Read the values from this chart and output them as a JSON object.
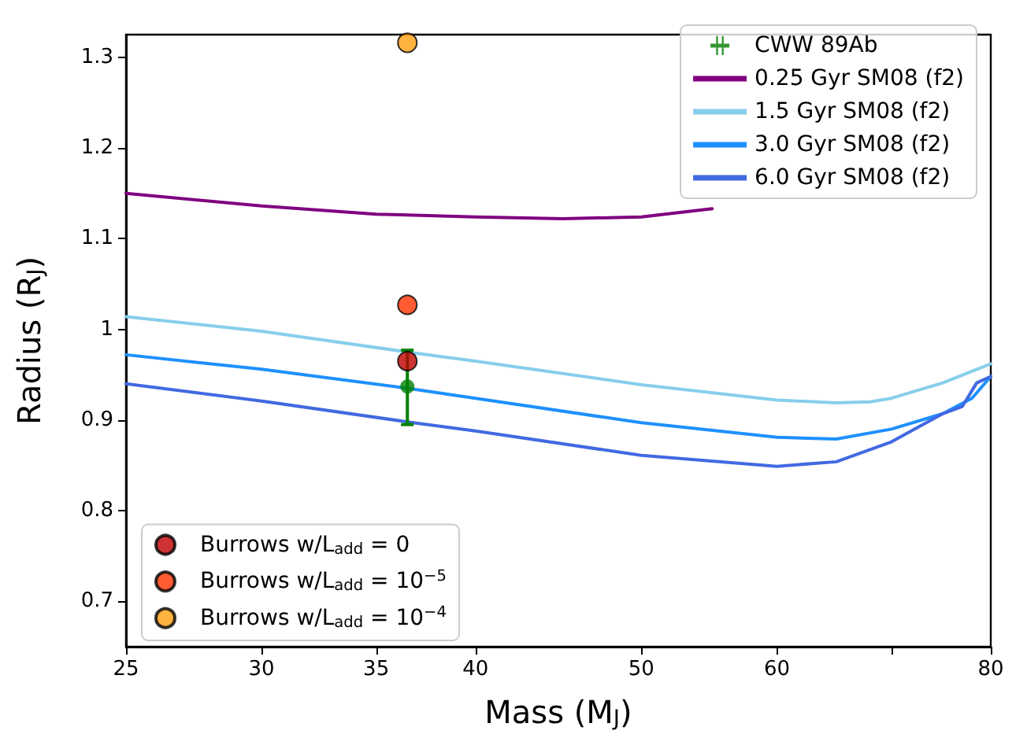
{
  "chart_data": {
    "type": "line",
    "xlabel": "Mass (M$_{J}$)",
    "ylabel": "Radius (R$_{J}$)",
    "log": "x",
    "xlim": [
      25,
      80
    ],
    "xticks": [
      25,
      30,
      35,
      40,
      50,
      60,
      {
        "value": 70,
        "label": null
      },
      80
    ],
    "ylim": [
      0.65,
      1.325
    ],
    "yticks": [
      0.7,
      0.8,
      0.9,
      1.0,
      1.1,
      1.2,
      1.3
    ],
    "grid": false,
    "legend": "top right",
    "series": [
      {
        "name": "CWW 89Ab",
        "type": "scatter",
        "marker": "circle",
        "color": "#008000",
        "x": [
          36.5
        ],
        "values": [
          0.937
        ],
        "errors": [
          [
            0.895,
            0.977
          ]
        ]
      },
      {
        "name": "0.25 Gyr SM08 (f2)",
        "marker": "none",
        "color": "#800080",
        "x": [
          25,
          30,
          35,
          40,
          45,
          50,
          55
        ],
        "values": [
          1.15,
          1.136,
          1.127,
          1.124,
          1.122,
          1.124,
          1.133
        ]
      },
      {
        "name": "1.5 Gyr SM08 (f2)",
        "marker": "none",
        "color": "#87ceeb",
        "x": [
          25,
          30,
          36.5,
          40,
          50,
          60,
          65,
          68,
          70,
          75,
          80
        ],
        "values": [
          1.014,
          0.998,
          0.975,
          0.965,
          0.939,
          0.922,
          0.919,
          0.92,
          0.924,
          0.941,
          0.962
        ]
      },
      {
        "name": "3.0 Gyr SM08 (f2)",
        "marker": "none",
        "color": "#1e90ff",
        "x": [
          25,
          30,
          36.5,
          40,
          50,
          60,
          65,
          70,
          75,
          78,
          80
        ],
        "values": [
          0.972,
          0.956,
          0.935,
          0.924,
          0.897,
          0.881,
          0.879,
          0.89,
          0.907,
          0.924,
          0.948
        ]
      },
      {
        "name": "6.0 Gyr SM08 (f2)",
        "marker": "none",
        "color": "#4169e1",
        "x": [
          25,
          30,
          36.5,
          40,
          50,
          60,
          65,
          70,
          75,
          77,
          78.5,
          80
        ],
        "values": [
          0.94,
          0.921,
          0.898,
          0.888,
          0.861,
          0.849,
          0.854,
          0.876,
          0.907,
          0.915,
          0.941,
          0.948
        ]
      },
      {
        "name": "Burrows w/L$_{add}$ = 0",
        "type": "scatter",
        "marker": "circle",
        "color": "#c00000",
        "x": [
          36.5
        ],
        "values": [
          0.965
        ]
      },
      {
        "name": "Burrows w/L$_{add}$ = 10$^{−5}$",
        "type": "scatter",
        "marker": "circle",
        "color": "#ff3300",
        "x": [
          36.5
        ],
        "values": [
          1.027
        ]
      },
      {
        "name": "Burrows w/L$_{add}$ = 10$^{−4}$",
        "type": "scatter",
        "marker": "circle",
        "color": "#ffa010",
        "x": [
          36.5
        ],
        "values": [
          1.316
        ]
      }
    ]
  }
}
